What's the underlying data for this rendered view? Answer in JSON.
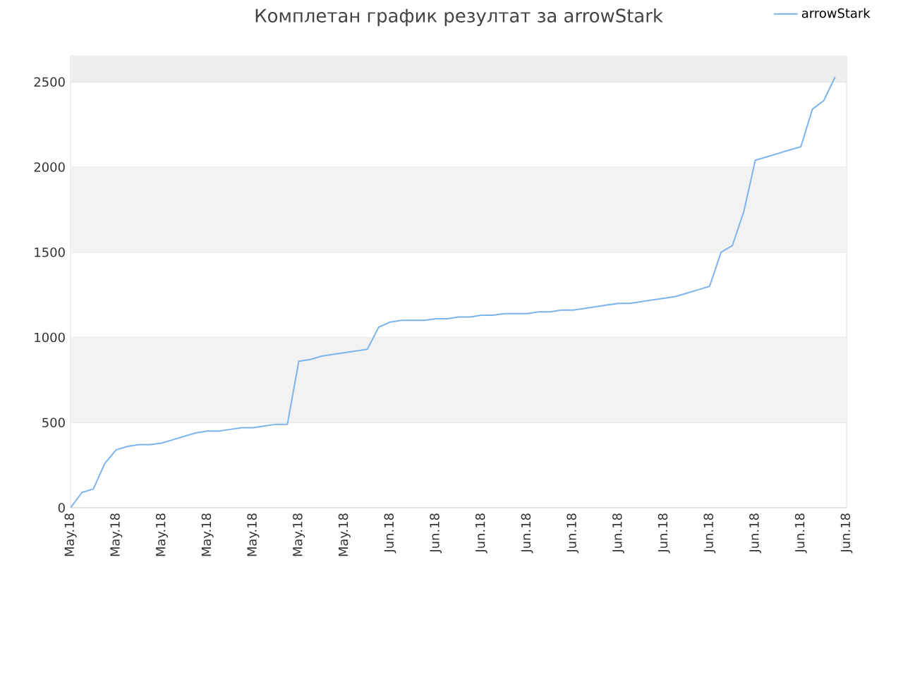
{
  "chart_data": {
    "type": "line",
    "title": "Комплетан график резултат за arrowStark",
    "categories": [
      "May.18",
      null,
      null,
      null,
      "May.18",
      null,
      null,
      null,
      "May.18",
      null,
      null,
      null,
      "May.18",
      null,
      null,
      null,
      "May.18",
      null,
      null,
      null,
      "May.18",
      null,
      null,
      null,
      "May.18",
      null,
      null,
      null,
      "Jun.18",
      null,
      null,
      null,
      "Jun.18",
      null,
      null,
      null,
      "Jun.18",
      null,
      null,
      null,
      "Jun.18",
      null,
      null,
      null,
      "Jun.18",
      null,
      null,
      null,
      "Jun.18",
      null,
      null,
      null,
      "Jun.18",
      null,
      null,
      null,
      "Jun.18",
      null,
      null,
      null,
      "Jun.18",
      null,
      null,
      null,
      "Jun.18",
      null,
      null,
      null,
      "Jun.18"
    ],
    "series": [
      {
        "name": "arrowStark",
        "color": "#7cb5ec",
        "values": [
          0,
          90,
          110,
          260,
          340,
          360,
          370,
          370,
          380,
          400,
          420,
          440,
          450,
          450,
          460,
          470,
          470,
          480,
          490,
          490,
          860,
          870,
          890,
          900,
          910,
          920,
          930,
          1060,
          1090,
          1100,
          1100,
          1100,
          1110,
          1110,
          1120,
          1120,
          1130,
          1130,
          1140,
          1140,
          1140,
          1150,
          1150,
          1160,
          1160,
          1170,
          1180,
          1190,
          1200,
          1200,
          1210,
          1220,
          1230,
          1240,
          1260,
          1280,
          1300,
          1500,
          1540,
          1740,
          2040,
          2060,
          2080,
          2100,
          2120,
          2340,
          2390,
          2530,
          null
        ]
      }
    ],
    "ylim": [
      0,
      2650
    ],
    "yticks": [
      0,
      500,
      1000,
      1500,
      2000,
      2500
    ],
    "bands": [
      {
        "axis": "y",
        "from": 500,
        "to": 1000,
        "color": "#f2f2f2"
      },
      {
        "axis": "y",
        "from": 1500,
        "to": 2000,
        "color": "#f2f2f2"
      },
      {
        "axis": "y",
        "from": 2500,
        "to": 2650,
        "color": "#eeeeee"
      }
    ],
    "grid": "y",
    "legend": "top right"
  }
}
